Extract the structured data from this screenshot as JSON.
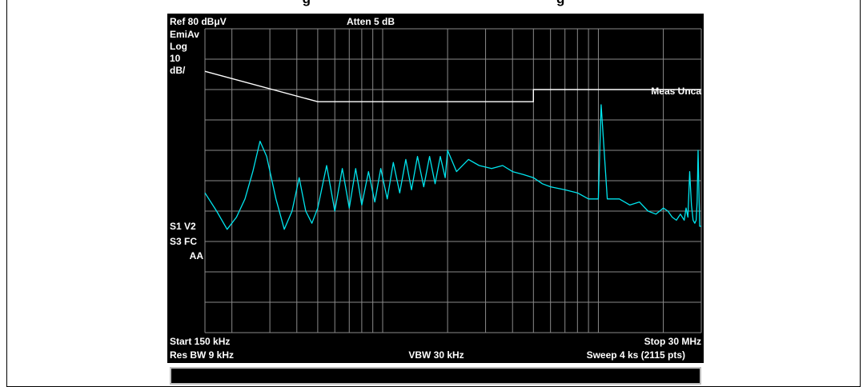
{
  "caption_fragment": "g                                                                 g",
  "display": {
    "ref_level": "Ref 80 dBμV",
    "attenuation": "Atten 5 dB",
    "detector": "EmiAv",
    "scale_type": "Log",
    "scale_div_value": "10",
    "scale_div_unit": "dB/",
    "meas_uncal": "Meas Unca",
    "side_labels": [
      "S1  V2",
      "S3  FC",
      "AA"
    ],
    "start_freq": "Start 150 kHz",
    "stop_freq": "Stop 30 MHz",
    "res_bw": "Res BW 9 kHz",
    "vbw": "VBW 30 kHz",
    "sweep": "Sweep 4 ks (2115 pts)"
  },
  "colors": {
    "screen": "#000000",
    "grid": "#8a8a8a",
    "trace": "#00e5ee",
    "limit": "#ffffff",
    "text": "#ffffff"
  },
  "chart_data": {
    "type": "line",
    "x_scale": "log",
    "x_unit": "MHz",
    "xlim": [
      0.15,
      30
    ],
    "y_unit": "dBμV",
    "ylim": [
      -20,
      80
    ],
    "grid": true,
    "series": [
      {
        "name": "",
        "x": [
          0.15,
          0.17,
          0.19,
          0.21,
          0.23,
          0.25,
          0.27,
          0.29,
          0.32,
          0.35,
          0.38,
          0.41,
          0.44,
          0.47,
          0.5,
          0.55,
          0.6,
          0.65,
          0.7,
          0.75,
          0.8,
          0.86,
          0.92,
          0.98,
          1.05,
          1.12,
          1.2,
          1.28,
          1.36,
          1.45,
          1.55,
          1.65,
          1.75,
          1.85,
          1.95,
          2.0,
          2.2,
          2.5,
          2.8,
          3.2,
          3.6,
          4.0,
          4.5,
          5.0,
          5.5,
          6.0,
          7.0,
          8.0,
          9.0,
          10.0,
          10.3,
          11.0,
          12.5,
          14.0,
          15.5,
          17.0,
          18.5,
          20.0,
          21.0,
          22.0,
          23.0,
          24.0,
          25.0,
          25.5,
          26.0,
          26.5,
          27.0,
          27.5,
          28.0,
          28.4,
          28.7,
          29.0,
          29.5,
          30.0
        ],
        "y": [
          26,
          20,
          14,
          18,
          24,
          33,
          43,
          38,
          24,
          14,
          20,
          31,
          20,
          16,
          21,
          35,
          20,
          34,
          21,
          34,
          22,
          33,
          23,
          34,
          24,
          36,
          26,
          37,
          27,
          38,
          28,
          38,
          29,
          38,
          31,
          40,
          33,
          37,
          35,
          34,
          35,
          33,
          32,
          31,
          29,
          28,
          27,
          26,
          24,
          24,
          55,
          24,
          24,
          22,
          23,
          20,
          19,
          21,
          20,
          18,
          17,
          19,
          17,
          21,
          18,
          33,
          22,
          17,
          16,
          17,
          23,
          40,
          15,
          15
        ]
      },
      {
        "name": "",
        "x": [
          0.15,
          0.5,
          0.5,
          5.0,
          5.0,
          30.0
        ],
        "y": [
          66,
          56,
          56,
          56,
          60,
          60
        ]
      }
    ]
  }
}
